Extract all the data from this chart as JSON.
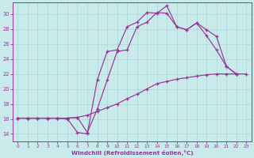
{
  "background_color": "#c8eaea",
  "line_color": "#993399",
  "xlabel": "Windchill (Refroidissement éolien,°C)",
  "xlim_min": -0.5,
  "xlim_max": 23.5,
  "ylim_min": 13.0,
  "ylim_max": 31.5,
  "yticks": [
    14,
    16,
    18,
    20,
    22,
    24,
    26,
    28,
    30
  ],
  "xticks": [
    0,
    1,
    2,
    3,
    4,
    5,
    6,
    7,
    8,
    9,
    10,
    11,
    12,
    13,
    14,
    15,
    16,
    17,
    18,
    19,
    20,
    21,
    22,
    23
  ],
  "line1": {
    "x": [
      0,
      1,
      2,
      3,
      4,
      5,
      6,
      7,
      8,
      9,
      10,
      11,
      12,
      13,
      14,
      15,
      16,
      17,
      18,
      19,
      20,
      21,
      22,
      23
    ],
    "y": [
      16.1,
      16.1,
      16.1,
      16.1,
      16.1,
      16.1,
      16.2,
      16.5,
      17.0,
      17.5,
      18.0,
      18.7,
      19.3,
      20.0,
      20.7,
      21.0,
      21.3,
      21.5,
      21.7,
      21.9,
      22.0,
      22.0,
      22.0,
      22.0
    ]
  },
  "line2": {
    "x": [
      0,
      1,
      2,
      3,
      4,
      5,
      6,
      7,
      8,
      9,
      10,
      11,
      12,
      13,
      14,
      15,
      16,
      17,
      18,
      19,
      20,
      21,
      22
    ],
    "y": [
      16.1,
      16.1,
      16.1,
      16.1,
      16.1,
      16.0,
      14.2,
      14.0,
      21.2,
      25.0,
      25.2,
      28.3,
      28.9,
      30.2,
      30.1,
      31.1,
      28.3,
      27.9,
      28.8,
      27.9,
      27.0,
      23.0,
      22.0
    ]
  },
  "line3": {
    "x": [
      0,
      1,
      2,
      3,
      4,
      5,
      6,
      7,
      8,
      9,
      10,
      11,
      12,
      13,
      14,
      15,
      16,
      17,
      18,
      19,
      20,
      21,
      22
    ],
    "y": [
      16.1,
      16.1,
      16.1,
      16.1,
      16.1,
      16.1,
      16.2,
      14.2,
      17.3,
      21.2,
      25.0,
      25.2,
      28.3,
      28.9,
      30.2,
      30.1,
      28.3,
      27.9,
      28.8,
      27.1,
      25.2,
      23.0,
      22.0
    ]
  }
}
